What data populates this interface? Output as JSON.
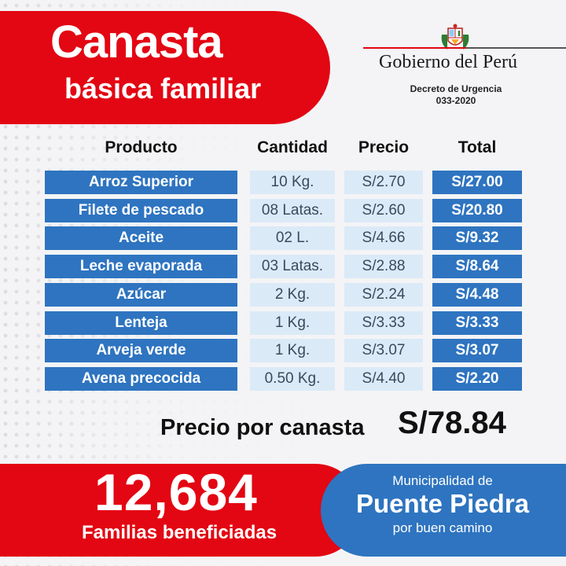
{
  "header": {
    "title_main": "Canasta",
    "title_sub": "básica familiar"
  },
  "government": {
    "name": "Gobierno del Perú",
    "decree_line1": "Decreto de Urgencia",
    "decree_line2": "033-2020"
  },
  "table": {
    "columns": [
      "Producto",
      "Cantidad",
      "Precio",
      "Total"
    ],
    "rows": [
      {
        "product": "Arroz Superior",
        "quantity": "10 Kg.",
        "price": "S/2.70",
        "total": "S/27.00"
      },
      {
        "product": "Filete de pescado",
        "quantity": "08 Latas.",
        "price": "S/2.60",
        "total": "S/20.80"
      },
      {
        "product": "Aceite",
        "quantity": "02 L.",
        "price": "S/4.66",
        "total": "S/9.32"
      },
      {
        "product": "Leche evaporada",
        "quantity": "03 Latas.",
        "price": "S/2.88",
        "total": "S/8.64"
      },
      {
        "product": "Azúcar",
        "quantity": "2 Kg.",
        "price": "S/2.24",
        "total": "S/4.48"
      },
      {
        "product": "Lenteja",
        "quantity": "1 Kg.",
        "price": "S/3.33",
        "total": "S/3.33"
      },
      {
        "product": "Arveja verde",
        "quantity": "1 Kg.",
        "price": "S/3.07",
        "total": "S/3.07"
      },
      {
        "product": "Avena precocida",
        "quantity": "0.50 Kg.",
        "price": "S/4.40",
        "total": "S/2.20"
      }
    ]
  },
  "summary": {
    "price_label": "Precio por canasta",
    "price_value": "S/78.84"
  },
  "beneficiaries": {
    "count": "12,684",
    "label": "Familias beneficiadas"
  },
  "municipality": {
    "prefix": "Municipalidad de",
    "name": "Puente Piedra",
    "slogan": "por buen camino"
  },
  "colors": {
    "brand_red": "#e30613",
    "brand_blue": "#2e74c0",
    "light_blue": "#dbeaf7"
  }
}
